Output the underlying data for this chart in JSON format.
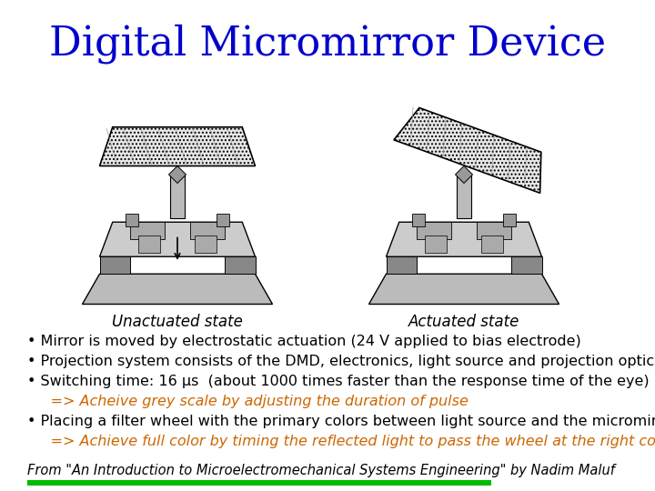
{
  "title": "Digital Micromirror Device",
  "title_color": "#0000CC",
  "title_fontsize": 32,
  "bullet_color": "#000000",
  "orange_color": "#CC6600",
  "footer_color": "#000000",
  "footer_fontsize": 10.5,
  "bullet_fontsize": 11.5,
  "bg_color": "#FFFFFF",
  "image_label_left": "Unactuated state",
  "image_label_right": "Actuated state",
  "green_bar_color": "#00BB00",
  "bullet_lines": [
    "• Mirror is moved by electrostatic actuation (24 V applied to bias electrode)",
    "• Projection system consists of the DMD, electronics, light source and projection optics",
    "• Switching time: 16 μs  (about 1000 times faster than the response time of the eye)"
  ],
  "indent_line1": "     => Acheive grey scale by adjusting the duration of pulse",
  "bullet_line2": "• Placing a filter wheel with the primary colors between light source and the micromirrors",
  "indent_line2": "     => Achieve full color by timing the reflected light to pass the wheel at the right color",
  "footer": "From \"An Introduction to Microelectromechanical Systems Engineering\" by Nadim Maluf"
}
